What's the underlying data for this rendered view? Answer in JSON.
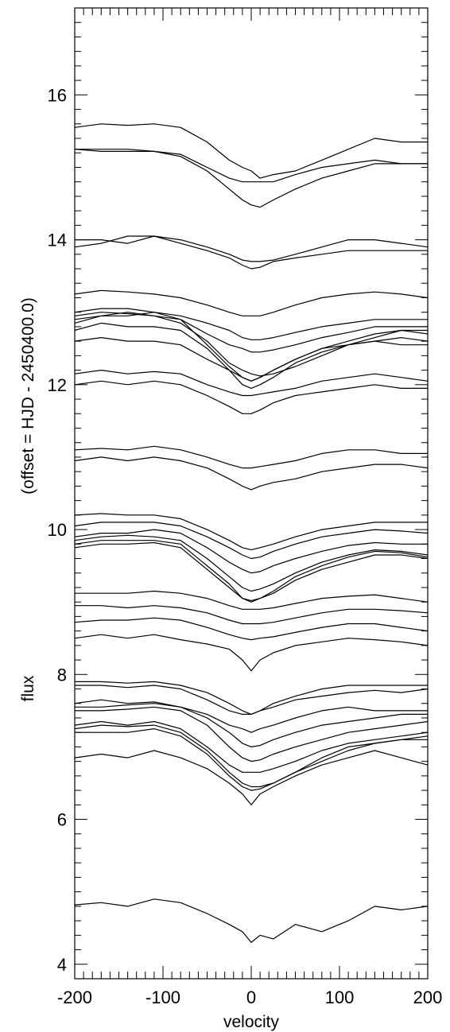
{
  "chart_data": {
    "type": "line",
    "title": "",
    "xlabel": "velocity",
    "ylabel_lines": [
      "flux",
      "(offset = HJD - 2450400.0)"
    ],
    "xlim": [
      -200,
      200
    ],
    "ylim": [
      3.8,
      17.2
    ],
    "x_ticks": [
      -200,
      -100,
      0,
      100,
      200
    ],
    "x_tick_labels": [
      "-200",
      "-100",
      "0",
      "100",
      "200"
    ],
    "y_ticks": [
      4,
      6,
      8,
      10,
      12,
      14,
      16
    ],
    "y_tick_labels": [
      "4",
      "6",
      "8",
      "10",
      "12",
      "14",
      "16"
    ],
    "grid": false,
    "legend": "none",
    "line_color": "#000000",
    "x": [
      -200,
      -170,
      -140,
      -110,
      -80,
      -50,
      -25,
      -10,
      0,
      10,
      25,
      50,
      80,
      110,
      140,
      170,
      200
    ],
    "series": [
      {
        "values": [
          15.55,
          15.6,
          15.58,
          15.6,
          15.55,
          15.35,
          15.1,
          15.0,
          14.95,
          14.85,
          14.9,
          14.95,
          15.1,
          15.25,
          15.4,
          15.35,
          15.35
        ]
      },
      {
        "values": [
          15.25,
          15.22,
          15.22,
          15.22,
          15.18,
          15.0,
          14.85,
          14.8,
          14.8,
          14.8,
          14.8,
          14.9,
          15.0,
          15.05,
          15.1,
          15.05,
          15.05
        ]
      },
      {
        "values": [
          15.25,
          15.25,
          15.25,
          15.22,
          15.15,
          14.95,
          14.7,
          14.55,
          14.48,
          14.45,
          14.55,
          14.7,
          14.85,
          14.95,
          15.05,
          15.05,
          15.05
        ]
      },
      {
        "values": [
          14.0,
          14.0,
          13.95,
          14.05,
          14.0,
          13.9,
          13.8,
          13.72,
          13.7,
          13.7,
          13.72,
          13.8,
          13.9,
          14.0,
          14.0,
          13.95,
          13.9
        ]
      },
      {
        "values": [
          13.9,
          13.95,
          14.05,
          14.05,
          13.95,
          13.85,
          13.75,
          13.65,
          13.6,
          13.62,
          13.7,
          13.75,
          13.8,
          13.85,
          13.85,
          13.85,
          13.85
        ]
      },
      {
        "values": [
          13.25,
          13.3,
          13.28,
          13.25,
          13.2,
          13.1,
          13.0,
          12.95,
          12.95,
          12.95,
          13.0,
          13.1,
          13.2,
          13.25,
          13.28,
          13.25,
          13.2
        ]
      },
      {
        "values": [
          13.0,
          13.05,
          13.05,
          13.0,
          12.95,
          12.85,
          12.75,
          12.65,
          12.62,
          12.62,
          12.65,
          12.72,
          12.8,
          12.85,
          12.9,
          12.9,
          12.9
        ]
      },
      {
        "values": [
          12.95,
          13.0,
          12.98,
          12.95,
          12.9,
          12.7,
          12.55,
          12.5,
          12.45,
          12.45,
          12.48,
          12.55,
          12.65,
          12.72,
          12.8,
          12.8,
          12.8
        ]
      },
      {
        "values": [
          12.9,
          12.95,
          13.0,
          12.95,
          12.85,
          12.6,
          12.3,
          12.2,
          12.15,
          12.12,
          12.15,
          12.25,
          12.4,
          12.55,
          12.65,
          12.75,
          12.75
        ]
      },
      {
        "values": [
          12.85,
          12.95,
          12.95,
          13.0,
          12.9,
          12.55,
          12.25,
          12.1,
          12.05,
          12.1,
          12.2,
          12.35,
          12.5,
          12.6,
          12.7,
          12.75,
          12.7
        ]
      },
      {
        "values": [
          12.75,
          12.85,
          12.8,
          12.8,
          12.75,
          12.5,
          12.2,
          12.0,
          11.95,
          12.0,
          12.1,
          12.3,
          12.45,
          12.55,
          12.6,
          12.65,
          12.6
        ]
      },
      {
        "values": [
          12.6,
          12.65,
          12.6,
          12.6,
          12.55,
          12.35,
          12.2,
          12.1,
          12.05,
          12.1,
          12.2,
          12.35,
          12.5,
          12.55,
          12.6,
          12.55,
          12.55
        ]
      },
      {
        "values": [
          12.15,
          12.2,
          12.15,
          12.18,
          12.15,
          12.0,
          11.9,
          11.85,
          11.85,
          11.87,
          11.9,
          11.95,
          12.05,
          12.1,
          12.15,
          12.1,
          12.05
        ]
      },
      {
        "values": [
          12.0,
          12.05,
          12.0,
          12.05,
          12.0,
          11.85,
          11.7,
          11.6,
          11.6,
          11.65,
          11.75,
          11.85,
          11.9,
          11.95,
          12.0,
          11.95,
          11.95
        ]
      },
      {
        "values": [
          11.1,
          11.12,
          11.1,
          11.15,
          11.1,
          11.0,
          10.9,
          10.85,
          10.85,
          10.87,
          10.9,
          10.95,
          11.05,
          11.1,
          11.1,
          11.05,
          11.05
        ]
      },
      {
        "values": [
          10.95,
          11.0,
          10.95,
          11.0,
          10.95,
          10.85,
          10.7,
          10.6,
          10.55,
          10.6,
          10.65,
          10.7,
          10.8,
          10.85,
          10.9,
          10.9,
          10.85
        ]
      },
      {
        "values": [
          10.2,
          10.22,
          10.2,
          10.2,
          10.15,
          10.0,
          9.85,
          9.75,
          9.72,
          9.75,
          9.8,
          9.9,
          10.0,
          10.05,
          10.1,
          10.1,
          10.1
        ]
      },
      {
        "values": [
          10.05,
          10.1,
          10.1,
          10.1,
          10.05,
          9.9,
          9.75,
          9.65,
          9.6,
          9.62,
          9.7,
          9.8,
          9.9,
          9.95,
          10.0,
          9.98,
          9.95
        ]
      },
      {
        "values": [
          9.9,
          9.95,
          9.95,
          10.0,
          9.95,
          9.75,
          9.55,
          9.45,
          9.4,
          9.42,
          9.5,
          9.6,
          9.7,
          9.78,
          9.82,
          9.8,
          9.8
        ]
      },
      {
        "values": [
          9.85,
          9.9,
          9.92,
          9.9,
          9.85,
          9.6,
          9.35,
          9.2,
          9.15,
          9.18,
          9.25,
          9.4,
          9.55,
          9.65,
          9.72,
          9.7,
          9.65
        ]
      },
      {
        "values": [
          9.8,
          9.85,
          9.85,
          9.85,
          9.8,
          9.5,
          9.25,
          9.05,
          9.0,
          9.05,
          9.15,
          9.35,
          9.5,
          9.62,
          9.7,
          9.68,
          9.62
        ]
      },
      {
        "values": [
          9.75,
          9.8,
          9.8,
          9.82,
          9.75,
          9.45,
          9.2,
          9.05,
          9.02,
          9.05,
          9.12,
          9.3,
          9.45,
          9.55,
          9.65,
          9.65,
          9.6
        ]
      },
      {
        "values": [
          9.12,
          9.12,
          9.12,
          9.15,
          9.12,
          9.05,
          8.95,
          8.9,
          8.9,
          8.9,
          8.92,
          8.98,
          9.05,
          9.08,
          9.1,
          9.05,
          9.0
        ]
      },
      {
        "values": [
          8.95,
          8.95,
          8.92,
          8.95,
          8.92,
          8.85,
          8.75,
          8.7,
          8.7,
          8.7,
          8.72,
          8.78,
          8.85,
          8.9,
          8.9,
          8.88,
          8.85
        ]
      },
      {
        "values": [
          8.72,
          8.75,
          8.75,
          8.78,
          8.75,
          8.65,
          8.55,
          8.5,
          8.48,
          8.5,
          8.52,
          8.58,
          8.65,
          8.7,
          8.7,
          8.65,
          8.6
        ]
      },
      {
        "values": [
          8.5,
          8.55,
          8.5,
          8.55,
          8.48,
          8.42,
          8.35,
          8.2,
          8.05,
          8.2,
          8.3,
          8.4,
          8.45,
          8.5,
          8.48,
          8.45,
          8.4
        ]
      },
      {
        "values": [
          7.9,
          7.9,
          7.88,
          7.9,
          7.85,
          7.75,
          7.6,
          7.5,
          7.45,
          7.5,
          7.6,
          7.7,
          7.8,
          7.85,
          7.85,
          7.85,
          7.85
        ]
      },
      {
        "values": [
          7.85,
          7.85,
          7.82,
          7.85,
          7.8,
          7.65,
          7.5,
          7.45,
          7.45,
          7.5,
          7.55,
          7.65,
          7.7,
          7.75,
          7.78,
          7.75,
          7.8
        ]
      },
      {
        "values": [
          7.6,
          7.65,
          7.6,
          7.62,
          7.55,
          7.45,
          7.3,
          7.25,
          7.2,
          7.25,
          7.3,
          7.4,
          7.5,
          7.55,
          7.5,
          7.5,
          7.5
        ]
      },
      {
        "values": [
          7.55,
          7.55,
          7.58,
          7.6,
          7.55,
          7.4,
          7.2,
          7.05,
          7.0,
          7.02,
          7.1,
          7.2,
          7.3,
          7.35,
          7.4,
          7.45,
          7.45
        ]
      },
      {
        "values": [
          7.5,
          7.5,
          7.52,
          7.55,
          7.5,
          7.3,
          7.0,
          6.85,
          6.8,
          6.82,
          6.9,
          7.0,
          7.1,
          7.2,
          7.25,
          7.3,
          7.35
        ]
      },
      {
        "values": [
          7.3,
          7.35,
          7.3,
          7.35,
          7.25,
          7.0,
          6.75,
          6.65,
          6.65,
          6.65,
          6.7,
          6.8,
          6.95,
          7.05,
          7.1,
          7.15,
          7.2
        ]
      },
      {
        "values": [
          7.25,
          7.3,
          7.28,
          7.3,
          7.2,
          6.95,
          6.65,
          6.5,
          6.45,
          6.45,
          6.5,
          6.65,
          6.8,
          6.95,
          7.05,
          7.1,
          7.15
        ]
      },
      {
        "values": [
          7.2,
          7.2,
          7.2,
          7.25,
          7.15,
          6.9,
          6.6,
          6.45,
          6.4,
          6.42,
          6.5,
          6.65,
          6.85,
          7.0,
          7.05,
          7.1,
          7.1
        ]
      },
      {
        "values": [
          6.85,
          6.9,
          6.85,
          6.95,
          6.85,
          6.7,
          6.5,
          6.35,
          6.2,
          6.35,
          6.45,
          6.6,
          6.75,
          6.85,
          6.95,
          6.85,
          6.75
        ]
      },
      {
        "values": [
          4.82,
          4.85,
          4.8,
          4.9,
          4.85,
          4.7,
          4.55,
          4.45,
          4.3,
          4.4,
          4.35,
          4.55,
          4.45,
          4.6,
          4.8,
          4.75,
          4.8
        ]
      }
    ]
  }
}
